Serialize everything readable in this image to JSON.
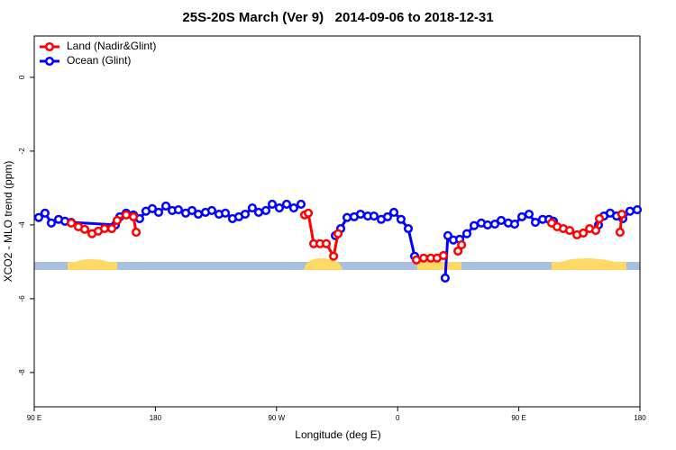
{
  "chart_data": {
    "type": "line",
    "title": "25S-20S March (Ver 9)   2014-09-06 to 2018-12-31",
    "x_label": "Longitude (deg E)",
    "y_label": "XCO2 - MLO trend (ppm)",
    "xlim": [
      90,
      540
    ],
    "xticks": [
      {
        "value": 90,
        "label": "90 E"
      },
      180,
      {
        "value": 270,
        "label": "90 W"
      },
      {
        "value": 360,
        "label": "0"
      },
      {
        "value": 450,
        "label": "90 E"
      },
      180
    ],
    "ylim": [
      -8.93,
      1.12
    ],
    "yticks": [
      0,
      -2,
      -4,
      -6,
      -8
    ],
    "legend": "top-left",
    "series": [
      {
        "name": "Land (Nadir&Glint)",
        "color": "#ff0000",
        "x": [
          117.5,
          122.8,
          127.5,
          132.9,
          137.5,
          142.2,
          147.6,
          151.6,
          158.3,
          163.7,
          165.7,
          null,
          290.9,
          293.6,
          297.6,
          302.3,
          307.0,
          312.4,
          315.7,
          null,
          373.9,
          379.3,
          384.6,
          389.3,
          394.0,
          null,
          404.8,
          407.5,
          null,
          474.4,
          478.5,
          483.1,
          487.8,
          493.2,
          497.9,
          502.6,
          507.2,
          509.9,
          null,
          525.2,
          526.6
        ],
        "values": [
          -3.95,
          -4.05,
          -4.12,
          -4.24,
          -4.17,
          -4.1,
          -4.1,
          -3.88,
          -3.73,
          -3.78,
          -4.2,
          null,
          -3.73,
          -3.68,
          -4.51,
          -4.51,
          -4.51,
          -4.85,
          -4.24,
          null,
          -4.95,
          -4.9,
          -4.9,
          -4.9,
          -4.83,
          null,
          -4.71,
          -4.54,
          null,
          -3.95,
          -4.05,
          -4.1,
          -4.15,
          -4.27,
          -4.22,
          -4.1,
          -4.15,
          -3.83,
          null,
          -4.2,
          -3.71
        ]
      },
      {
        "name": "Ocean (Glint)",
        "color": "#0000ff",
        "x": [
          93.3,
          98.0,
          102.7,
          108.1,
          112.8,
          117.5,
          150.3,
          153.6,
          158.3,
          163.7,
          168.3,
          173.0,
          177.7,
          182.4,
          187.8,
          192.5,
          197.1,
          202.5,
          207.2,
          211.9,
          217.2,
          221.9,
          227.3,
          232.0,
          237.3,
          242.0,
          246.7,
          252.0,
          256.7,
          262.1,
          266.8,
          272.1,
          277.5,
          282.8,
          288.2,
          null,
          313.7,
          317.7,
          322.4,
          327.7,
          332.4,
          337.8,
          342.4,
          347.8,
          352.5,
          357.2,
          362.5,
          367.9,
          372.6,
          null,
          395.3,
          397.3,
          401.4,
          406.1,
          411.4,
          416.8,
          422.1,
          426.8,
          432.2,
          436.9,
          442.2,
          446.9,
          452.3,
          457.6,
          462.3,
          467.7,
          472.4,
          475.7,
          null,
          509.2,
          513.2,
          517.9,
          522.6,
          527.3,
          532.6,
          538.0
        ],
        "values": [
          -3.8,
          -3.68,
          -3.95,
          -3.85,
          -3.9,
          -3.93,
          -4.0,
          -3.78,
          -3.68,
          -3.73,
          -3.83,
          -3.63,
          -3.56,
          -3.66,
          -3.49,
          -3.61,
          -3.59,
          -3.68,
          -3.61,
          -3.71,
          -3.66,
          -3.61,
          -3.71,
          -3.68,
          -3.83,
          -3.78,
          -3.71,
          -3.54,
          -3.66,
          -3.61,
          -3.44,
          -3.54,
          -3.44,
          -3.54,
          -3.44,
          null,
          -4.29,
          -4.1,
          -3.8,
          -3.78,
          -3.71,
          -3.76,
          -3.76,
          -3.85,
          -3.78,
          -3.66,
          -3.85,
          -4.1,
          -4.85,
          null,
          -5.44,
          -4.29,
          -4.41,
          -4.39,
          -4.24,
          -4.02,
          -3.95,
          -4.0,
          -3.98,
          -3.88,
          -3.95,
          -3.98,
          -3.78,
          -3.71,
          -3.93,
          -3.85,
          -3.85,
          -3.9,
          null,
          -4.0,
          -3.76,
          -3.68,
          -3.76,
          -3.83,
          -3.63,
          -3.59
        ]
      }
    ]
  }
}
